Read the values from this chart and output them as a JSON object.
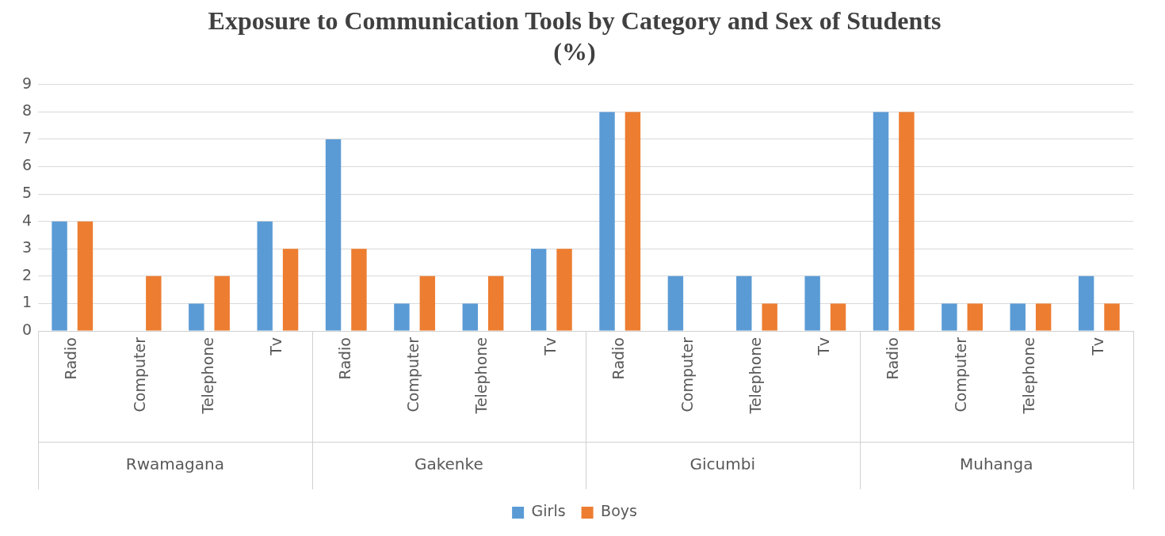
{
  "chart_data": {
    "type": "bar",
    "title": "Exposure to Communication Tools by Category and Sex of Students\n(%)",
    "categories": [
      "Radio",
      "Computer",
      "Telephone",
      "Tv",
      "Radio",
      "Computer",
      "Telephone",
      "Tv",
      "Radio",
      "Computer",
      "Telephone",
      "Tv",
      "Radio",
      "Computer",
      "Telephone",
      "Tv"
    ],
    "series": [
      {
        "name": "Girls",
        "color": "#5b9bd5",
        "values": [
          4,
          0,
          1,
          4,
          7,
          1,
          1,
          3,
          8,
          2,
          2,
          2,
          8,
          1,
          1,
          2
        ]
      },
      {
        "name": "Boys",
        "color": "#ed7d31",
        "values": [
          4,
          2,
          2,
          3,
          3,
          2,
          2,
          3,
          8,
          0,
          1,
          1,
          8,
          1,
          1,
          1
        ]
      }
    ],
    "annotations": [
      "Rwamagana",
      "Gakenke",
      "Gicumbi",
      "Muhanga"
    ],
    "ylim": [
      0,
      9
    ],
    "yticks": [
      0,
      1,
      2,
      3,
      4,
      5,
      6,
      7,
      8,
      9
    ],
    "grid": "y",
    "legend": "bottom"
  }
}
